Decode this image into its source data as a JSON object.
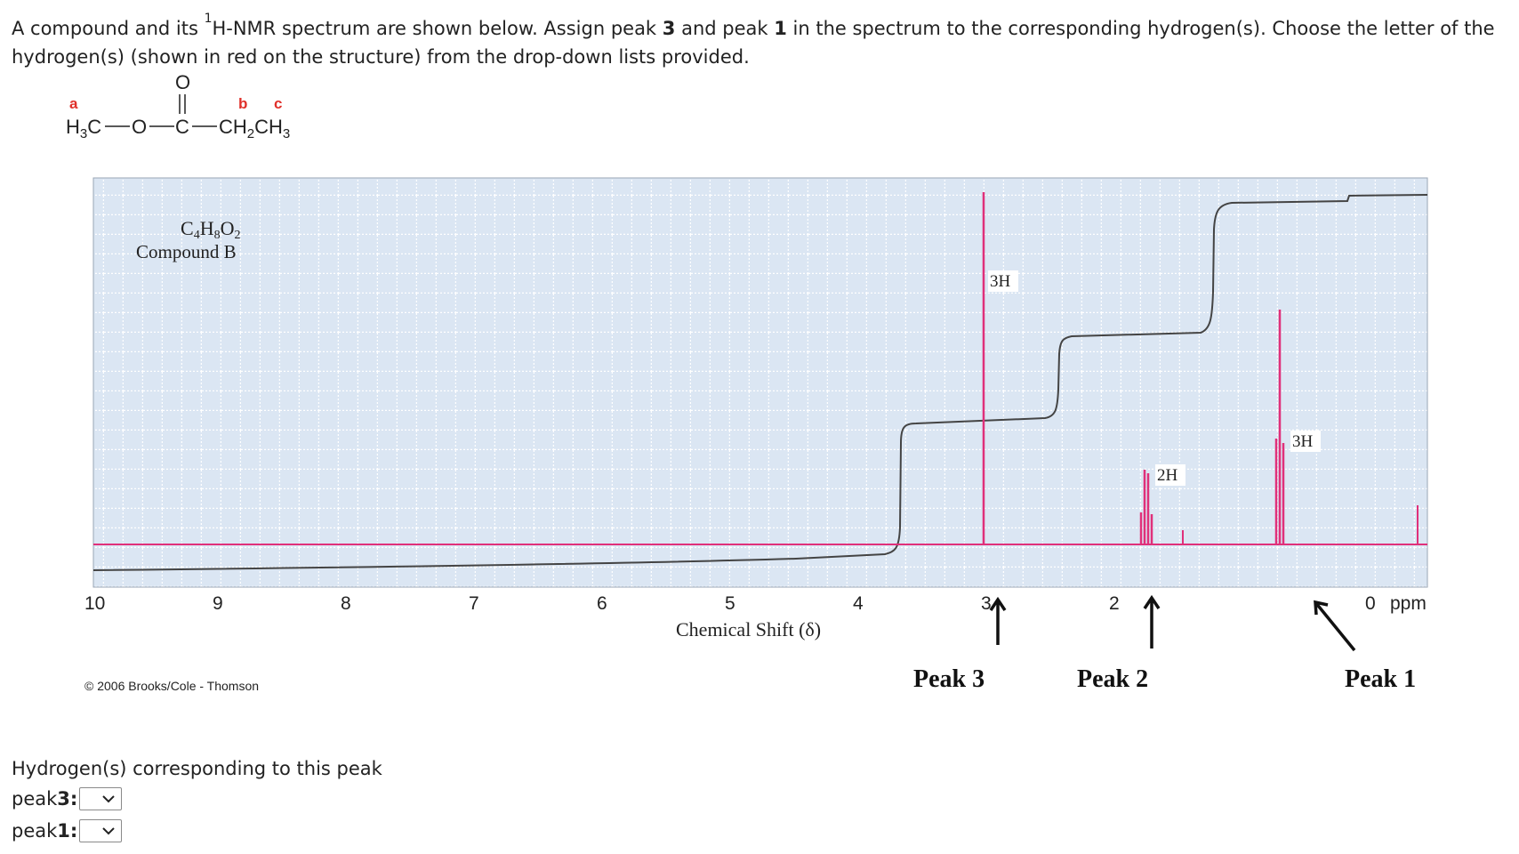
{
  "question": {
    "line1_a": "A compound and its ",
    "sup_1": "1",
    "line1_b": "H-NMR spectrum are shown below. Assign peak ",
    "peak_a": "3",
    "line1_c": " and peak ",
    "peak_b": "1",
    "line1_d": " in the spectrum to the corresponding hydrogen(s). Choose the letter of the hydrogen(s) (shown in red on the structure) from the drop-down lists provided."
  },
  "structure": {
    "label_a": "a",
    "label_b": "b",
    "label_c": "c",
    "oxygen_top": "O",
    "methyl_H": "H",
    "methyl_3": "3",
    "methyl_C": "C",
    "ester_O": "O",
    "carbonyl_C": "C",
    "ethyl_CH": "CH",
    "ethyl_2": "2",
    "ethyl_CH2": "CH",
    "ethyl_3": "3",
    "label_color": "#e0302a"
  },
  "spectrum": {
    "formula_C": "C",
    "formula_4": "4",
    "formula_H": "H",
    "formula_8": "8",
    "formula_O": "O",
    "formula_2": "2",
    "compound_name": "Compound B",
    "integration_3H_left": "3H",
    "integration_2H": "2H",
    "integration_3H_right": "3H",
    "x_ticks": [
      "10",
      "9",
      "8",
      "7",
      "6",
      "5",
      "4",
      "3",
      "2",
      "0"
    ],
    "x_unit": "ppm",
    "x_label": "Chemical Shift (δ)",
    "peak3_label": "Peak 3",
    "peak2_label": "Peak 2",
    "peak1_label": "Peak 1",
    "copyright": "© 2006 Brooks/Cole - Thomson",
    "peak_color": "#e0307a",
    "grid_bg": "#dbe6f3"
  },
  "answers": {
    "caption": "Hydrogen(s) corresponding to this peak",
    "row1_prefix": "peak ",
    "row1_num": "3",
    "row1_colon": ":",
    "row1_value": "",
    "row2_prefix": "peak ",
    "row2_num": "1",
    "row2_colon": ":",
    "row2_value": ""
  }
}
